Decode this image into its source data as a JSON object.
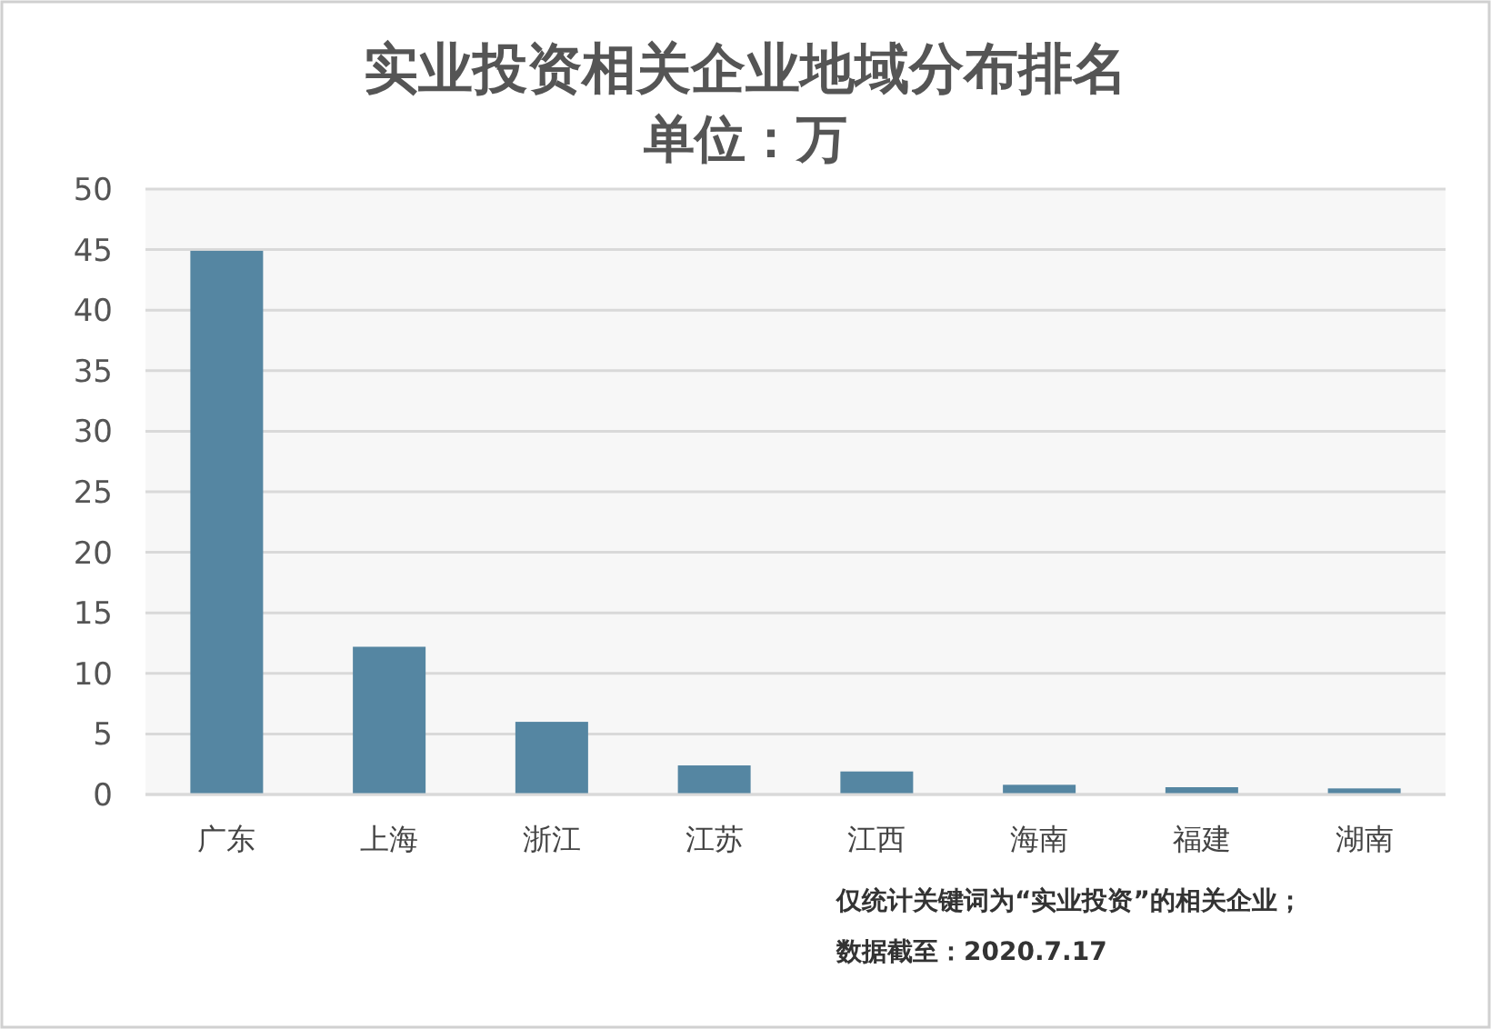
{
  "chart_data": {
    "type": "bar",
    "title": "实业投资相关企业地域分布排名",
    "subtitle": "单位：万",
    "categories": [
      "广东",
      "上海",
      "浙江",
      "江苏",
      "江西",
      "海南",
      "福建",
      "湖南"
    ],
    "values": [
      44.9,
      12.2,
      6.0,
      2.4,
      1.9,
      0.8,
      0.6,
      0.5
    ],
    "color": "#5586a2",
    "ylim": [
      0,
      50
    ],
    "yticks": [
      0,
      5,
      10,
      15,
      20,
      25,
      30,
      35,
      40,
      45,
      50
    ],
    "grid": "y",
    "annotations": [
      "仅统计关键词为“实业投资”的相关企业；",
      "数据截至：2020.7.17"
    ]
  }
}
